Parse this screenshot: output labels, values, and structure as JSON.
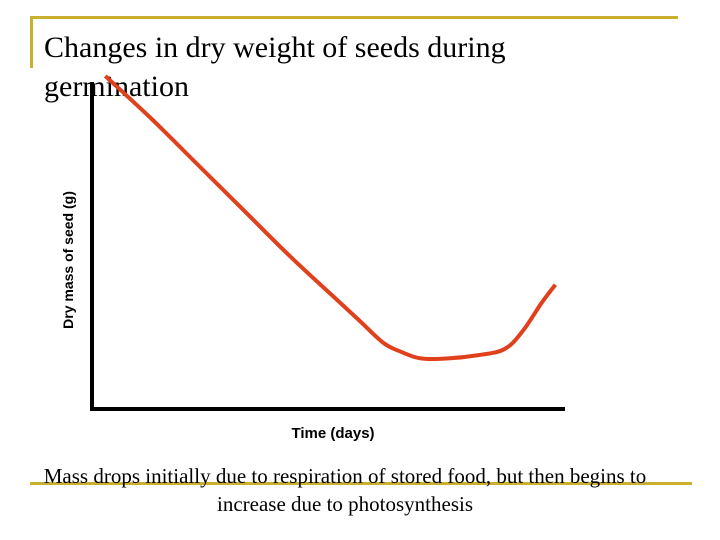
{
  "slide": {
    "title": "Changes in dry weight of seeds during germination",
    "caption": "Mass drops initially due to respiration of stored food, but then begins to increase due to photosynthesis",
    "frame_color": "#c9b12e"
  },
  "chart_data": {
    "type": "line",
    "title": "",
    "xlabel": "Time (days)",
    "ylabel": "Dry mass of seed (g)",
    "x_ticks": "none",
    "y_ticks": "none",
    "grid": false,
    "xlim": [
      0,
      100
    ],
    "ylim": [
      0,
      100
    ],
    "series": [
      {
        "color": "#e0401c",
        "x": [
          2,
          12,
          22,
          32,
          42,
          52,
          57,
          62,
          66,
          70,
          76,
          82,
          88,
          92,
          96,
          99
        ],
        "y": [
          100,
          86,
          71,
          56,
          41,
          27,
          20,
          13,
          10,
          8,
          8,
          9,
          11,
          17,
          26,
          32
        ]
      }
    ],
    "axis_color": "#000000"
  }
}
